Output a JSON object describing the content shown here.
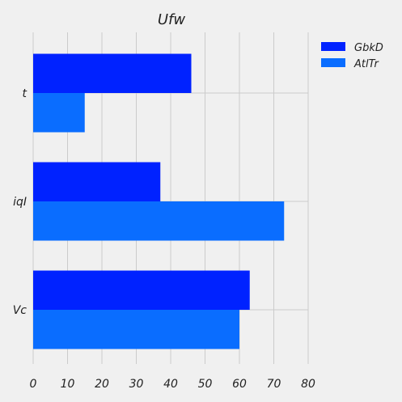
{
  "chart_data": {
    "type": "bar",
    "orientation": "horizontal",
    "title": "Ufw",
    "xlabel": "",
    "ylabel": "",
    "categories": [
      "t",
      "iqI",
      "Vc"
    ],
    "series": [
      {
        "name": "GbkD",
        "values": [
          46,
          37,
          63
        ],
        "color": "#0022ff"
      },
      {
        "name": "AtlTr",
        "values": [
          15,
          73,
          60
        ],
        "color": "#0a6dff"
      }
    ],
    "xlim": [
      0,
      80
    ],
    "xticks": [
      0,
      10,
      20,
      30,
      40,
      50,
      60,
      70,
      80
    ],
    "grid": true,
    "legend_position": "top-right",
    "background": "#f0f0f0"
  }
}
